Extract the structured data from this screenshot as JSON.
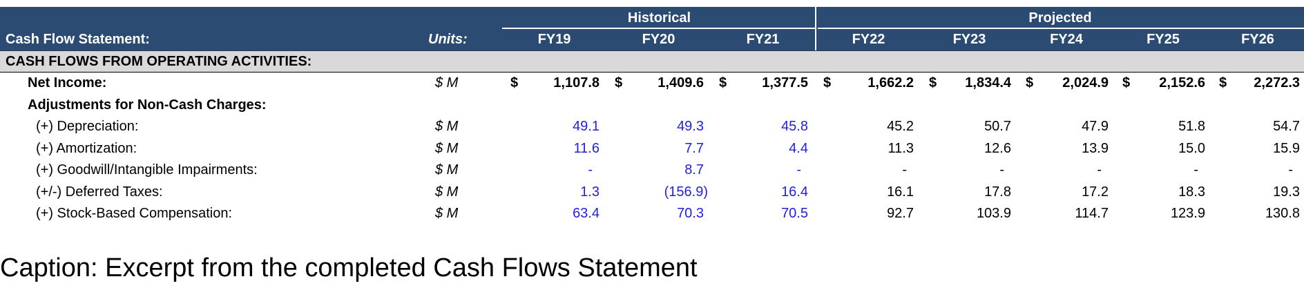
{
  "header": {
    "group_historical": "Historical",
    "group_projected": "Projected",
    "title": "Cash Flow Statement:",
    "units": "Units:",
    "years": [
      "FY19",
      "FY20",
      "FY21",
      "FY22",
      "FY23",
      "FY24",
      "FY25",
      "FY26"
    ]
  },
  "section": {
    "title": "CASH FLOWS FROM OPERATING ACTIVITIES:"
  },
  "rows": {
    "net_income": {
      "label": "Net Income:",
      "units": "$ M",
      "currency": "$",
      "values": [
        "1,107.8",
        "1,409.6",
        "1,377.5",
        "1,662.2",
        "1,834.4",
        "2,024.9",
        "2,152.6",
        "2,272.3"
      ]
    },
    "adjustments": {
      "label": "Adjustments for Non-Cash Charges:"
    },
    "depreciation": {
      "label": "(+) Depreciation:",
      "units": "$ M",
      "values": [
        "49.1",
        "49.3",
        "45.8",
        "45.2",
        "50.7",
        "47.9",
        "51.8",
        "54.7"
      ]
    },
    "amortization": {
      "label": "(+) Amortization:",
      "units": "$ M",
      "values": [
        "11.6",
        "7.7",
        "4.4",
        "11.3",
        "12.6",
        "13.9",
        "15.0",
        "15.9"
      ]
    },
    "impairments": {
      "label": "(+) Goodwill/Intangible Impairments:",
      "units": "$ M",
      "values": [
        "-",
        "8.7",
        "-",
        "-",
        "-",
        "-",
        "-",
        "-"
      ]
    },
    "deferred_taxes": {
      "label": "(+/-) Deferred Taxes:",
      "units": "$ M",
      "values": [
        "1.3",
        "(156.9)",
        "16.4",
        "16.1",
        "17.8",
        "17.2",
        "18.3",
        "19.3"
      ]
    },
    "sbc": {
      "label": "(+) Stock-Based Compensation:",
      "units": "$ M",
      "values": [
        "63.4",
        "70.3",
        "70.5",
        "92.7",
        "103.9",
        "114.7",
        "123.9",
        "130.8"
      ]
    }
  },
  "colors": {
    "header_bg": "#2c4b73",
    "section_bg": "#d9d9d9",
    "historical_input": "#1f1fe0"
  },
  "caption": "Caption: Excerpt from the completed Cash Flows Statement"
}
